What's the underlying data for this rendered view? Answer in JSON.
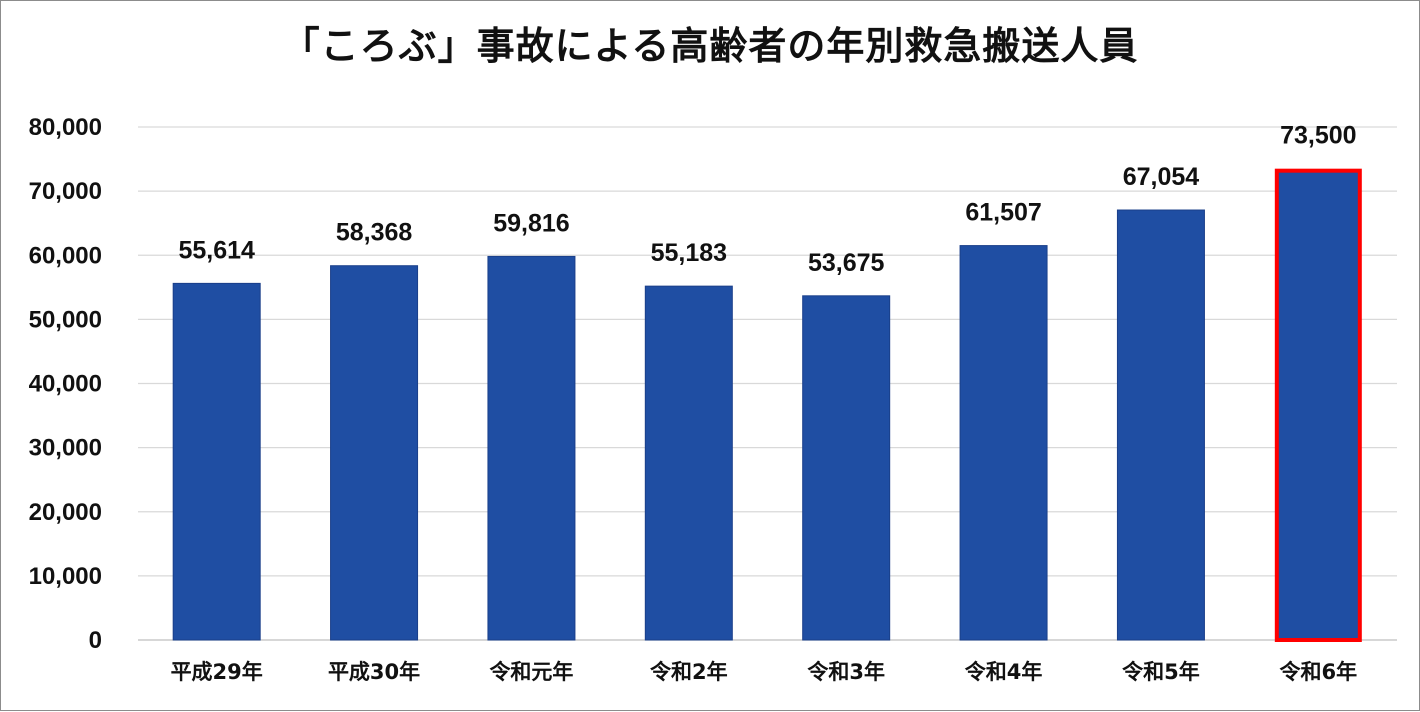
{
  "chart_data": {
    "type": "bar",
    "title": "「ころぶ」事故による高齢者の年別救急搬送人員",
    "categories": [
      "平成29年",
      "平成30年",
      "令和元年",
      "令和2年",
      "令和3年",
      "令和4年",
      "令和5年",
      "令和6年"
    ],
    "values": [
      55614,
      58368,
      59816,
      55183,
      53675,
      61507,
      67054,
      73500
    ],
    "value_labels": [
      "55,614",
      "58,368",
      "59,816",
      "55,183",
      "53,675",
      "61,507",
      "67,054",
      "73,500"
    ],
    "y_ticks": [
      "0",
      "10,000",
      "20,000",
      "30,000",
      "40,000",
      "50,000",
      "60,000",
      "70,000",
      "80,000"
    ],
    "ylim": [
      0,
      80000
    ],
    "xlabel": "",
    "ylabel": "",
    "grid": true,
    "legend": "none",
    "bar_color": "#1f4ea3",
    "highlight_index": 7,
    "highlight_color": "#ff0000",
    "gridline_color": "#d9d9d9"
  }
}
